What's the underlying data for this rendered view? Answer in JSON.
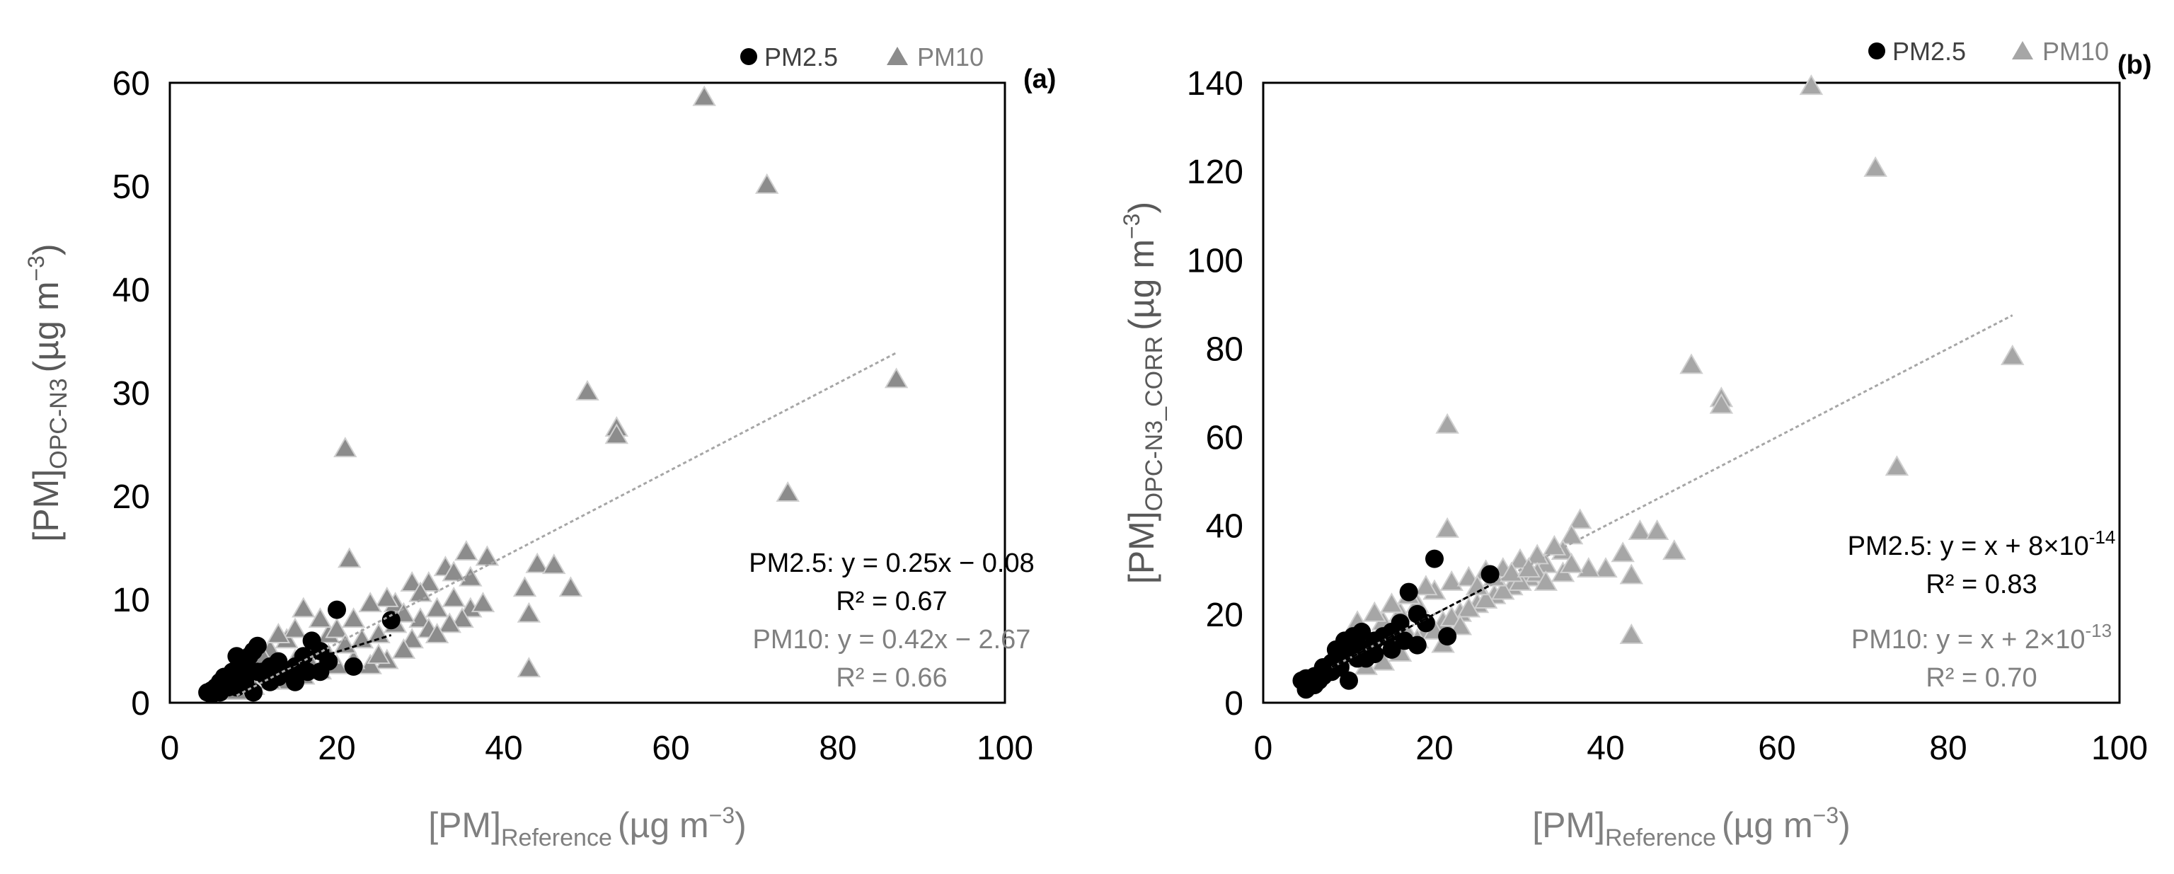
{
  "panels": [
    {
      "label": "(a)",
      "legend": [
        {
          "name": "PM2.5",
          "marker": "circle"
        },
        {
          "name": "PM10",
          "marker": "triangle"
        }
      ],
      "ylabel": {
        "main": "[PM]",
        "sub": "OPC-N3",
        "unit": "(µg m",
        "exp": "−3",
        "close": ")"
      },
      "xlabel": {
        "main": "[PM]",
        "sub": "Reference",
        "unit": "(µg m",
        "exp": "−3",
        "close": ")"
      },
      "annotations": [
        {
          "series": "PM2.5",
          "text": "PM2.5: y = 0.25x − 0.08"
        },
        {
          "series": "PM2.5",
          "text": "R² = 0.67"
        },
        {
          "series": "PM10",
          "text": "PM10: y = 0.42x − 2.67"
        },
        {
          "series": "PM10",
          "text": "R² = 0.66"
        }
      ]
    },
    {
      "label": "(b)",
      "legend": [
        {
          "name": "PM2.5",
          "marker": "circle"
        },
        {
          "name": "PM10",
          "marker": "triangle"
        }
      ],
      "ylabel": {
        "main": "[PM]",
        "sub": "OPC-N3_CORR",
        "unit": "(µg m",
        "exp": "−3",
        "close": ")"
      },
      "xlabel": {
        "main": "[PM]",
        "sub": "Reference",
        "unit": "(µg m",
        "exp": "−3",
        "close": ")"
      },
      "annotations": [
        {
          "series": "PM2.5",
          "text": "PM2.5: y = x + 8×10",
          "exp": "-14"
        },
        {
          "series": "PM2.5",
          "text": "R² = 0.83"
        },
        {
          "series": "PM10",
          "text": "PM10: y = x + 2×10",
          "exp": "-13"
        },
        {
          "series": "PM10",
          "text": "R² = 0.70"
        }
      ]
    }
  ],
  "colors": {
    "pm25": "#000000",
    "pm10_fill": "#8c8c8c",
    "pm10_fill_b": "#a6a6a6",
    "pm10_edge": "#cfcfcf",
    "pm10_text": "#808080",
    "axis": "#000000",
    "tick_text": "#000000",
    "xlabel_text": "#7f7f7f",
    "ylabel_text": "#595959",
    "trend_pm25": "#000000",
    "trend_pm10": "#a6a6a6"
  },
  "chart_data": [
    {
      "type": "scatter",
      "panel": "a",
      "xlim": [
        0,
        100
      ],
      "ylim": [
        0,
        60
      ],
      "xticks": [
        0,
        20,
        40,
        60,
        80,
        100
      ],
      "yticks": [
        0,
        10,
        20,
        30,
        40,
        50,
        60
      ],
      "series": [
        {
          "name": "PM10",
          "marker": "triangle",
          "trendline": {
            "slope": 0.42,
            "intercept": -2.67,
            "x_range": [
              8,
              87
            ]
          },
          "points": [
            [
              64,
              58.5
            ],
            [
              71.5,
              50
            ],
            [
              50,
              30
            ],
            [
              53.5,
              26.5
            ],
            [
              53.5,
              25.8
            ],
            [
              87,
              31.2
            ],
            [
              74,
              20.2
            ],
            [
              21,
              24.5
            ],
            [
              21.5,
              13.8
            ],
            [
              43,
              3.2
            ],
            [
              42.5,
              11
            ],
            [
              44,
              13.3
            ],
            [
              46,
              13.2
            ],
            [
              48,
              11
            ],
            [
              43,
              8.5
            ],
            [
              38,
              14
            ],
            [
              35.5,
              14.5
            ],
            [
              33,
              13
            ],
            [
              31,
              11.5
            ],
            [
              29,
              11.5
            ],
            [
              27,
              9.5
            ],
            [
              26,
              10
            ],
            [
              30,
              8
            ],
            [
              32,
              9
            ],
            [
              34,
              10
            ],
            [
              36,
              9
            ],
            [
              37.5,
              9.5
            ],
            [
              35,
              8
            ],
            [
              33.5,
              7.5
            ],
            [
              31,
              7
            ],
            [
              29,
              6
            ],
            [
              28,
              5
            ],
            [
              26,
              4
            ],
            [
              24,
              3.5
            ],
            [
              22,
              4
            ],
            [
              20,
              3.5
            ],
            [
              18,
              3
            ],
            [
              16,
              2.5
            ],
            [
              14,
              2
            ],
            [
              12,
              2
            ],
            [
              10,
              1.5
            ],
            [
              8,
              1
            ],
            [
              17,
              5
            ],
            [
              19,
              6.5
            ],
            [
              15,
              4
            ],
            [
              13,
              3.5
            ],
            [
              11,
              2.8
            ],
            [
              9,
              2
            ],
            [
              16,
              9
            ],
            [
              18,
              8
            ],
            [
              14,
              6
            ],
            [
              12,
              5
            ],
            [
              20,
              7
            ],
            [
              22,
              8
            ],
            [
              25,
              6.5
            ],
            [
              27,
              7.5
            ],
            [
              24,
              9.5
            ],
            [
              21,
              5.5
            ],
            [
              23,
              6
            ],
            [
              30,
              10.5
            ],
            [
              36,
              12
            ],
            [
              34,
              12.5
            ],
            [
              19,
              4.5
            ],
            [
              15,
              7
            ],
            [
              13,
              6.5
            ],
            [
              11,
              4.5
            ],
            [
              17,
              3.5
            ],
            [
              25,
              4.5
            ],
            [
              28,
              8.5
            ],
            [
              32,
              6.5
            ]
          ]
        },
        {
          "name": "PM2.5",
          "marker": "circle",
          "trendline": {
            "slope": 0.25,
            "intercept": -0.08,
            "x_range": [
              4,
              26.5
            ]
          },
          "points": [
            [
              4.5,
              1
            ],
            [
              5,
              1.2
            ],
            [
              5.5,
              1.5
            ],
            [
              6,
              2
            ],
            [
              6.5,
              2.5
            ],
            [
              7,
              1.5
            ],
            [
              7.5,
              3
            ],
            [
              8,
              2.5
            ],
            [
              8.5,
              3.5
            ],
            [
              9,
              4
            ],
            [
              9.5,
              4.5
            ],
            [
              10,
              5
            ],
            [
              10.5,
              5.5
            ],
            [
              11,
              3
            ],
            [
              11.5,
              2.5
            ],
            [
              12,
              3.5
            ],
            [
              13,
              4
            ],
            [
              14,
              3
            ],
            [
              15,
              3.5
            ],
            [
              16,
              4.5
            ],
            [
              17,
              6
            ],
            [
              18,
              5
            ],
            [
              19,
              4
            ],
            [
              20,
              9
            ],
            [
              22,
              3.5
            ],
            [
              26.5,
              8
            ],
            [
              6,
              1
            ],
            [
              7,
              2
            ],
            [
              8,
              1.5
            ],
            [
              9,
              2
            ],
            [
              10,
              1
            ],
            [
              10.5,
              3
            ],
            [
              12,
              2
            ],
            [
              5,
              0.8
            ],
            [
              8,
              4.5
            ],
            [
              9.5,
              3
            ],
            [
              13,
              2.5
            ],
            [
              15,
              2
            ],
            [
              18,
              3
            ],
            [
              16.5,
              3
            ]
          ]
        }
      ]
    },
    {
      "type": "scatter",
      "panel": "b",
      "xlim": [
        0,
        100
      ],
      "ylim": [
        0,
        140
      ],
      "xticks": [
        0,
        20,
        40,
        60,
        80,
        100
      ],
      "yticks": [
        0,
        20,
        40,
        60,
        80,
        100,
        120,
        140
      ],
      "series": [
        {
          "name": "PM10",
          "marker": "triangle",
          "trendline": {
            "slope": 1.0,
            "intercept": 0,
            "x_range": [
              8,
              87.5
            ]
          },
          "points": [
            [
              64,
              139
            ],
            [
              71.5,
              120.5
            ],
            [
              50,
              76
            ],
            [
              53.5,
              68.5
            ],
            [
              53.5,
              67
            ],
            [
              87.5,
              78
            ],
            [
              74,
              53
            ],
            [
              21.5,
              62.5
            ],
            [
              21.5,
              39
            ],
            [
              43,
              15
            ],
            [
              37,
              41
            ],
            [
              36,
              37.5
            ],
            [
              44,
              38.5
            ],
            [
              46,
              38.5
            ],
            [
              48,
              34
            ],
            [
              42,
              33.5
            ],
            [
              40,
              30
            ],
            [
              43,
              28.5
            ],
            [
              38,
              30
            ],
            [
              35,
              34
            ],
            [
              33,
              31
            ],
            [
              31,
              28
            ],
            [
              29,
              26
            ],
            [
              27,
              24
            ],
            [
              25,
              22
            ],
            [
              23,
              20
            ],
            [
              21,
              18
            ],
            [
              19,
              16
            ],
            [
              17,
              15
            ],
            [
              15,
              13
            ],
            [
              13,
              12
            ],
            [
              11,
              10
            ],
            [
              9,
              8
            ],
            [
              16,
              20
            ],
            [
              18,
              22
            ],
            [
              14,
              18
            ],
            [
              12,
              15
            ],
            [
              20,
              25
            ],
            [
              22,
              27
            ],
            [
              24,
              28
            ],
            [
              26,
              29.5
            ],
            [
              28,
              30
            ],
            [
              30,
              32
            ],
            [
              32,
              33
            ],
            [
              34,
              35
            ],
            [
              18,
              14
            ],
            [
              20,
              16
            ],
            [
              22,
              19
            ],
            [
              24,
              21
            ],
            [
              26,
              23
            ],
            [
              28,
              25
            ],
            [
              30,
              27
            ],
            [
              32,
              29
            ],
            [
              19,
              26
            ],
            [
              17,
              24
            ],
            [
              15,
              22
            ],
            [
              13,
              20
            ],
            [
              11,
              18
            ],
            [
              10,
              12
            ],
            [
              25,
              26
            ],
            [
              27,
              28
            ],
            [
              29,
              29
            ],
            [
              31,
              30
            ],
            [
              33,
              27
            ],
            [
              35,
              29
            ],
            [
              36,
              31
            ],
            [
              23,
              17
            ],
            [
              21,
              13
            ],
            [
              16,
              11
            ],
            [
              14,
              9
            ],
            [
              12,
              8
            ]
          ]
        },
        {
          "name": "PM2.5",
          "marker": "circle",
          "trendline": {
            "slope": 1.0,
            "intercept": 0,
            "x_range": [
              4,
              26.5
            ]
          },
          "points": [
            [
              4.5,
              5
            ],
            [
              5,
              3
            ],
            [
              5.5,
              4
            ],
            [
              6,
              6
            ],
            [
              6.5,
              5
            ],
            [
              7,
              8
            ],
            [
              7.5,
              7
            ],
            [
              8,
              9
            ],
            [
              8.5,
              10
            ],
            [
              9,
              12
            ],
            [
              9.5,
              11
            ],
            [
              10,
              14
            ],
            [
              10.5,
              15
            ],
            [
              11,
              13
            ],
            [
              11.5,
              16
            ],
            [
              12,
              12
            ],
            [
              13,
              14
            ],
            [
              14,
              15
            ],
            [
              15,
              16
            ],
            [
              16,
              18
            ],
            [
              17,
              25
            ],
            [
              18,
              20
            ],
            [
              19,
              18
            ],
            [
              20,
              32.5
            ],
            [
              21.5,
              15
            ],
            [
              26.5,
              29
            ],
            [
              6,
              4
            ],
            [
              7,
              6
            ],
            [
              8,
              7
            ],
            [
              9,
              8
            ],
            [
              10,
              5
            ],
            [
              11,
              10
            ],
            [
              12,
              10
            ],
            [
              5,
              5.5
            ],
            [
              8.5,
              12
            ],
            [
              9.5,
              14
            ],
            [
              13,
              11
            ],
            [
              15,
              12
            ],
            [
              18,
              13
            ],
            [
              16.5,
              14
            ]
          ]
        }
      ]
    }
  ]
}
